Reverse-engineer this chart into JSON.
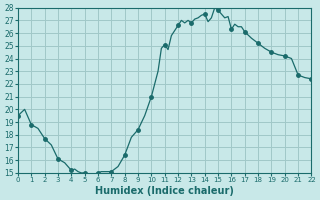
{
  "title": "",
  "xlabel": "Humidex (Indice chaleur)",
  "ylabel": "",
  "bg_color": "#c8e8e8",
  "grid_color": "#a0c8c8",
  "line_color": "#1a6b6b",
  "marker_color": "#1a6b6b",
  "ylim": [
    15,
    28
  ],
  "xlim": [
    0,
    22
  ],
  "yticks": [
    15,
    16,
    17,
    18,
    19,
    20,
    21,
    22,
    23,
    24,
    25,
    26,
    27,
    28
  ],
  "xticks": [
    0,
    1,
    2,
    3,
    4,
    5,
    6,
    7,
    8,
    9,
    10,
    11,
    12,
    13,
    14,
    15,
    16,
    17,
    18,
    19,
    20,
    21,
    22
  ],
  "x": [
    0,
    0.5,
    1,
    1.5,
    2,
    2.5,
    3,
    3.5,
    4,
    4.25,
    4.5,
    4.75,
    5,
    5.25,
    5.5,
    5.75,
    6,
    6.25,
    6.5,
    6.75,
    7,
    7.5,
    8,
    8.5,
    9,
    9.5,
    10,
    10.25,
    10.5,
    10.75,
    11,
    11.25,
    11.5,
    11.75,
    12,
    12.25,
    12.5,
    12.75,
    13,
    13.25,
    13.5,
    13.75,
    14,
    14.25,
    14.5,
    14.75,
    15,
    15.25,
    15.5,
    15.75,
    16,
    16.25,
    16.5,
    16.75,
    17,
    17.5,
    18,
    18.5,
    19,
    19.5,
    20,
    20.5,
    21,
    21.5,
    22
  ],
  "y": [
    19.5,
    20.0,
    18.8,
    18.5,
    17.7,
    17.2,
    16.1,
    15.8,
    15.2,
    15.3,
    15.1,
    15.0,
    15.0,
    14.9,
    14.9,
    14.9,
    15.0,
    15.1,
    15.1,
    15.1,
    15.1,
    15.5,
    16.4,
    17.8,
    18.4,
    19.5,
    21.0,
    22.0,
    23.0,
    24.8,
    25.1,
    24.7,
    25.8,
    26.2,
    26.6,
    27.0,
    26.8,
    27.0,
    26.8,
    27.1,
    27.2,
    27.4,
    27.5,
    26.9,
    27.2,
    28.0,
    27.8,
    27.5,
    27.2,
    27.3,
    26.3,
    26.7,
    26.5,
    26.5,
    26.1,
    25.6,
    25.2,
    24.8,
    24.5,
    24.3,
    24.2,
    24.0,
    22.7,
    22.5,
    22.4
  ],
  "marker_x": [
    0,
    1,
    2,
    3,
    4,
    5,
    6,
    7,
    8,
    9,
    10,
    11,
    12,
    13,
    14,
    15,
    16,
    17,
    18,
    19,
    20,
    21,
    22
  ],
  "marker_y": [
    19.5,
    18.8,
    17.7,
    16.1,
    15.2,
    15.0,
    15.0,
    15.1,
    16.4,
    18.4,
    21.0,
    25.1,
    26.6,
    26.8,
    27.5,
    27.8,
    26.3,
    26.1,
    25.2,
    24.5,
    24.2,
    22.7,
    22.4
  ]
}
